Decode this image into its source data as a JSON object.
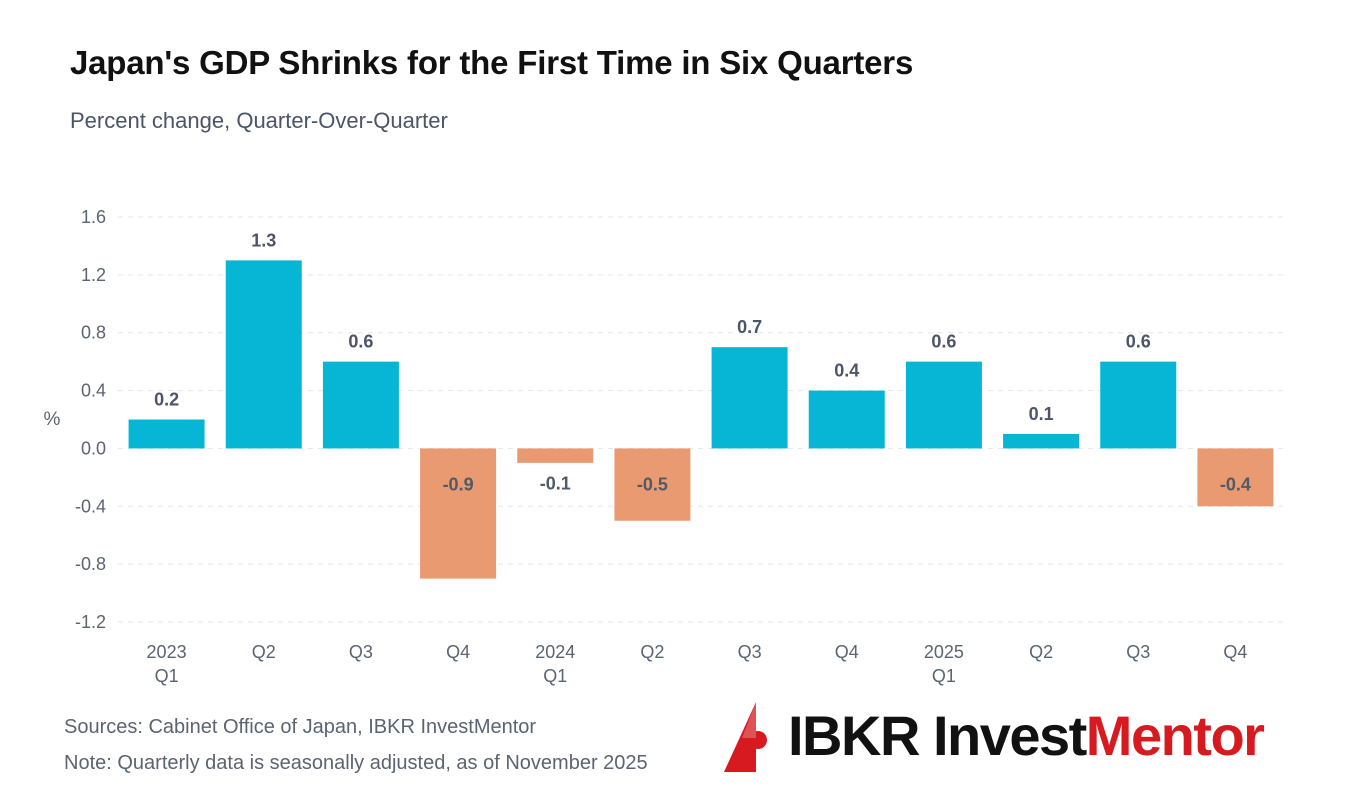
{
  "chart_data": {
    "type": "bar",
    "title": "Japan's GDP Shrinks for the First Time in Six Quarters",
    "subtitle": "Percent change, Quarter-Over-Quarter",
    "xlabel": "",
    "ylabel": "%",
    "ylim": [
      -1.2,
      1.6
    ],
    "yticks": [
      1.6,
      1.2,
      0.8,
      0.4,
      0.0,
      -0.4,
      -0.8,
      -1.2
    ],
    "ytick_labels": [
      "1.6",
      "1.2",
      "0.8",
      "0.4",
      "0.0",
      "-0.4",
      "-0.8",
      "-1.2"
    ],
    "grid": true,
    "categories": [
      {
        "year": "2023",
        "quarter": "Q1"
      },
      {
        "year": "",
        "quarter": "Q2"
      },
      {
        "year": "",
        "quarter": "Q3"
      },
      {
        "year": "",
        "quarter": "Q4"
      },
      {
        "year": "2024",
        "quarter": "Q1"
      },
      {
        "year": "",
        "quarter": "Q2"
      },
      {
        "year": "",
        "quarter": "Q3"
      },
      {
        "year": "",
        "quarter": "Q4"
      },
      {
        "year": "2025",
        "quarter": "Q1"
      },
      {
        "year": "",
        "quarter": "Q2"
      },
      {
        "year": "",
        "quarter": "Q3"
      },
      {
        "year": "",
        "quarter": "Q4"
      }
    ],
    "values": [
      0.2,
      1.3,
      0.6,
      -0.9,
      -0.1,
      -0.5,
      0.7,
      0.4,
      0.6,
      0.1,
      0.6,
      -0.4
    ],
    "value_labels": [
      "0.2",
      "1.3",
      "0.6",
      "-0.9",
      "-0.1",
      "-0.5",
      "0.7",
      "0.4",
      "0.6",
      "0.1",
      "0.6",
      "-0.4"
    ],
    "colors": {
      "positive": "#06b6d4",
      "negative": "#e99a70"
    }
  },
  "footer": {
    "sources": "Sources: Cabinet Office of Japan, IBKR InvestMentor",
    "note": "Note: Quarterly data is seasonally adjusted, as of November 2025"
  },
  "brand": {
    "name_part1": "IBKR Invest",
    "name_part2": "Mentor",
    "color_dark": "#111111",
    "color_red": "#d71920",
    "logo_icon": "ibkr-logo-icon"
  }
}
